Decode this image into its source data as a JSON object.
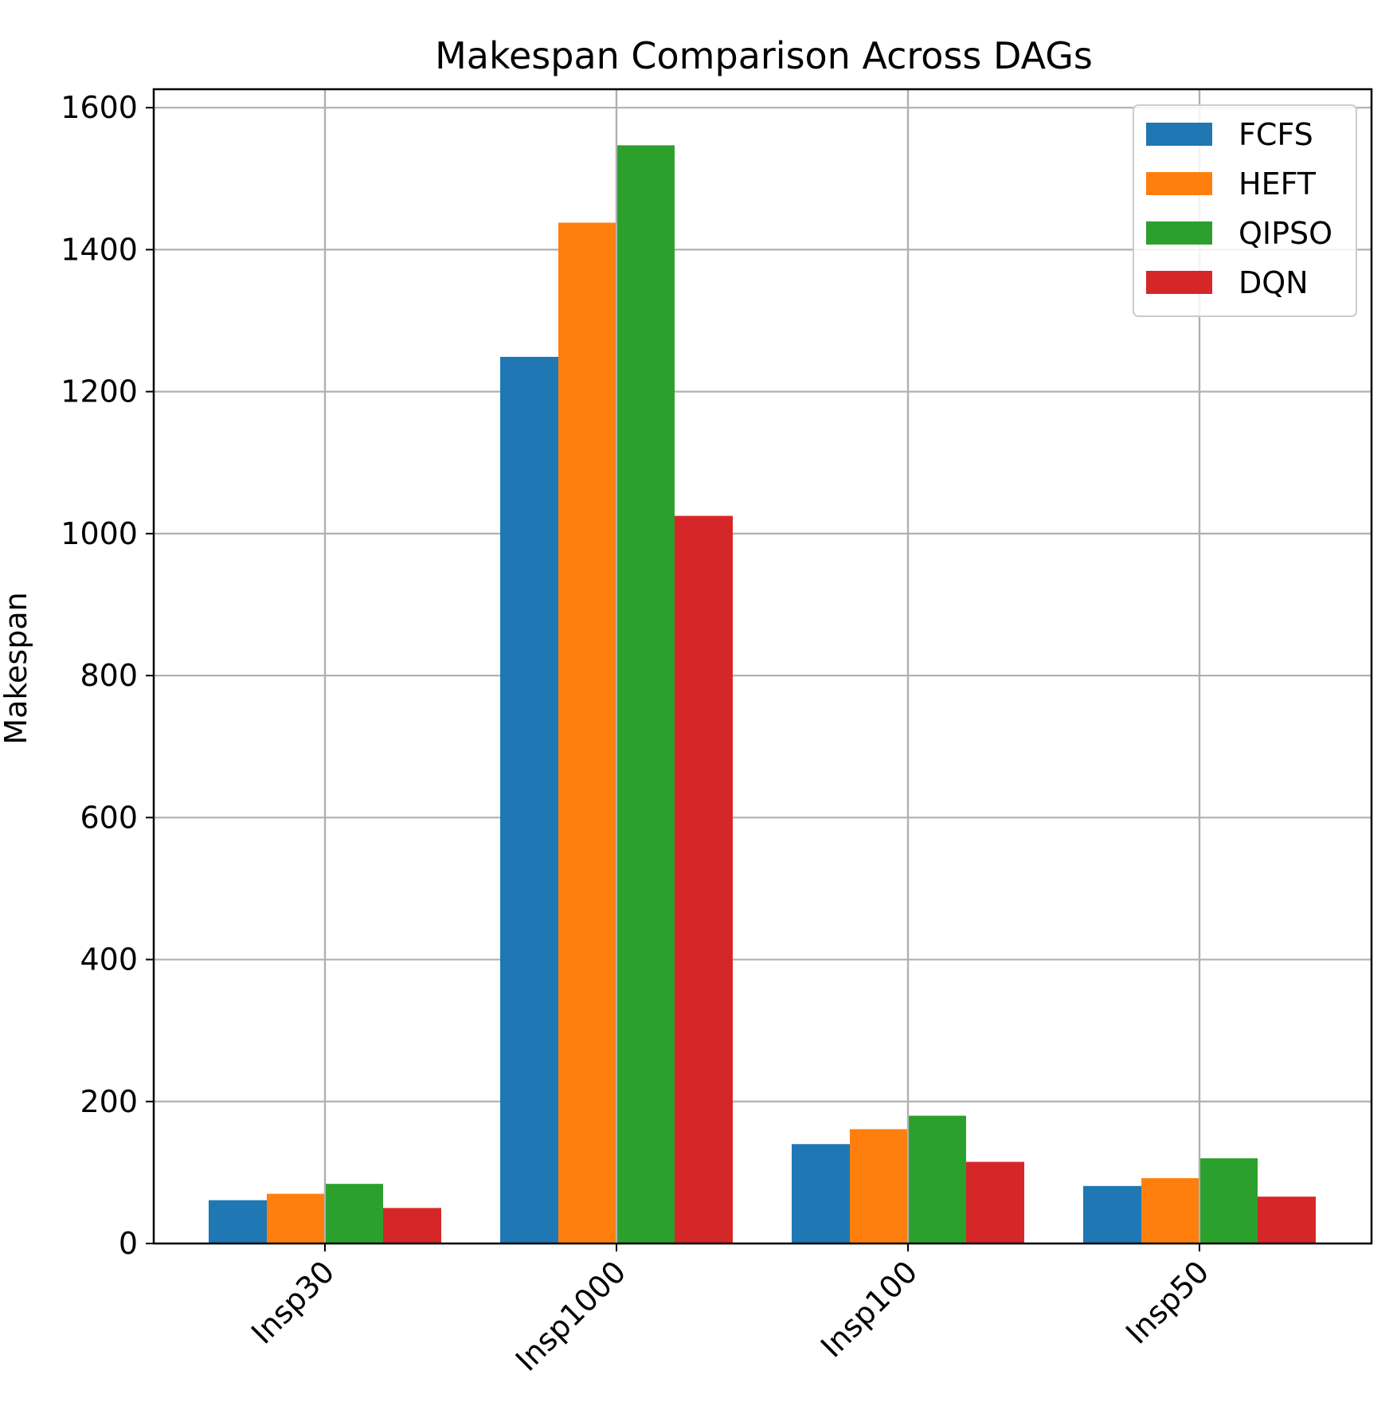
{
  "chart_data": {
    "type": "bar",
    "title": "Makespan Comparison Across DAGs",
    "xlabel": "",
    "ylabel": "Makespan",
    "categories": [
      "Insp30",
      "Insp1000",
      "Insp100",
      "Insp50"
    ],
    "series": [
      {
        "name": "FCFS",
        "color": "#1f77b4",
        "values": [
          61,
          1249,
          140,
          81
        ]
      },
      {
        "name": "HEFT",
        "color": "#ff7f0e",
        "values": [
          70,
          1438,
          161,
          92
        ]
      },
      {
        "name": "QIPSO",
        "color": "#2ca02c",
        "values": [
          84,
          1547,
          180,
          120
        ]
      },
      {
        "name": "DQN",
        "color": "#d62728",
        "values": [
          50,
          1025,
          115,
          66
        ]
      }
    ],
    "ylim": [
      0,
      1626
    ],
    "yticks": [
      "0",
      "200",
      "400",
      "600",
      "800",
      "1000",
      "1200",
      "1400",
      "1600"
    ],
    "grid": true,
    "legend_position": "top-right",
    "xtick_rotation": 45
  }
}
